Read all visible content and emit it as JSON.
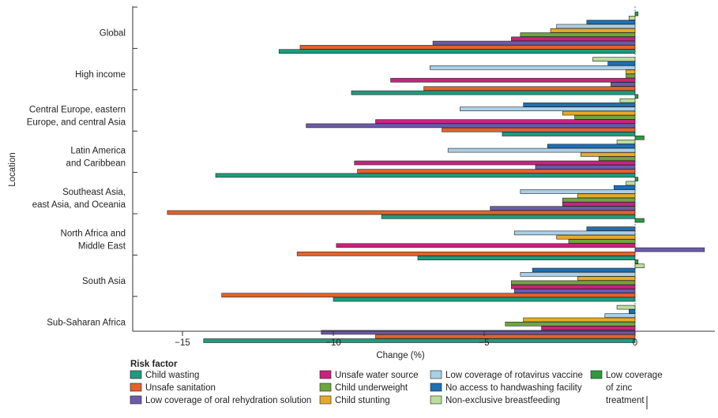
{
  "chart_data": {
    "type": "bar",
    "orientation": "horizontal",
    "xlabel": "Change (%)",
    "ylabel": "Location",
    "xlim": [
      -16.4,
      2.5
    ],
    "xticks": [
      -15,
      -10,
      -5,
      0
    ],
    "xtick_labels": [
      "−15",
      "−10",
      "−5",
      "0"
    ],
    "legend_title": "Risk factor",
    "categories": [
      [
        "Global"
      ],
      [
        "High income"
      ],
      [
        "Central Europe, eastern",
        "Europe, and central Asia"
      ],
      [
        "Latin America",
        "and Caribbean"
      ],
      [
        "Southeast Asia,",
        "east Asia, and Oceania"
      ],
      [
        "North Africa and",
        "Middle East"
      ],
      [
        "South Asia"
      ],
      [
        "Sub-Saharan Africa"
      ]
    ],
    "series": [
      {
        "name": "Low coverage of zinc treatment",
        "legend_lines": [
          "Low coverage",
          "of zinc",
          "treatment"
        ],
        "color": "#2e9a3e",
        "values": [
          0.1,
          0,
          0.1,
          0.3,
          0.1,
          0.3,
          0.1,
          0
        ]
      },
      {
        "name": "Non-exclusive breastfeeding",
        "color": "#b9dd9a",
        "values": [
          -0.2,
          -1.4,
          -0.5,
          -0.6,
          -0.3,
          0,
          0.3,
          -0.6
        ]
      },
      {
        "name": "No access to handwashing facility",
        "color": "#1f6fb4",
        "values": [
          -1.6,
          -0.9,
          -3.7,
          -2.9,
          -0.7,
          -1.6,
          -3.4,
          -0.2
        ]
      },
      {
        "name": "Low coverage of rotavirus vaccine",
        "color": "#a9cfe6",
        "values": [
          -2.6,
          -6.8,
          -5.8,
          -6.2,
          -3.8,
          -4.0,
          -3.8,
          -1.0
        ]
      },
      {
        "name": "Child stunting",
        "color": "#e8a92a",
        "values": [
          -2.8,
          -0.3,
          -2.4,
          -1.8,
          -1.9,
          -2.6,
          -1.9,
          -3.7
        ]
      },
      {
        "name": "Child underweight",
        "color": "#6fa540",
        "values": [
          -3.8,
          -0.3,
          -2.0,
          -1.2,
          -2.4,
          -2.2,
          -4.1,
          -4.3
        ]
      },
      {
        "name": "Unsafe water source",
        "color": "#c8237e",
        "values": [
          -4.1,
          -8.1,
          -8.6,
          -9.3,
          -2.4,
          -9.9,
          -4.1,
          -3.1
        ]
      },
      {
        "name": "Low coverage of oral rehydration solution",
        "color": "#6b5ba8",
        "values": [
          -6.7,
          -0.8,
          -10.9,
          -3.3,
          -4.8,
          2.3,
          -4.0,
          -10.4
        ]
      },
      {
        "name": "Unsafe sanitation",
        "color": "#e2622f",
        "values": [
          -11.1,
          -7.0,
          -6.4,
          -9.2,
          -15.5,
          -11.2,
          -13.7,
          -8.6
        ]
      },
      {
        "name": "Child wasting",
        "color": "#1f9b7d",
        "values": [
          -11.8,
          -9.4,
          -4.4,
          -13.9,
          -8.4,
          -7.2,
          -10.0,
          -14.3
        ]
      }
    ]
  }
}
